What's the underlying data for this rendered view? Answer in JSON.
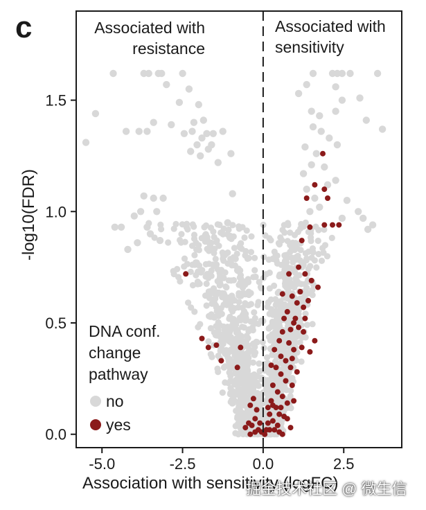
{
  "panel_label": "c",
  "watermark": "掘金技术社区 @ 微生信",
  "colors": {
    "no": "#d8d8d8",
    "yes": "#8b1a1a",
    "axis": "#1a1a1a"
  },
  "chart_data": {
    "type": "scatter",
    "title": "",
    "xlabel": "Association with sensitivity (logFC)",
    "ylabel": "-log10(FDR)",
    "xlim": [
      -5.8,
      4.3
    ],
    "ylim": [
      -0.06,
      1.9
    ],
    "xticks": [
      -5.0,
      -2.5,
      0.0,
      2.5
    ],
    "xtick_labels": [
      "-5.0",
      "-2.5",
      "0.0",
      "2.5"
    ],
    "yticks": [
      0.0,
      0.5,
      1.0,
      1.5
    ],
    "ytick_labels": [
      "0.0",
      "0.5",
      "1.0",
      "1.5"
    ],
    "vline": {
      "x": 0,
      "style": "dashed"
    },
    "annotations": {
      "left": [
        "Associated with",
        "resistance"
      ],
      "right": [
        "Associated with",
        "sensitivity"
      ]
    },
    "legend": {
      "title": [
        "DNA conf.",
        "change",
        "pathway"
      ],
      "placement": "bottom-left",
      "entries": [
        {
          "key": "no",
          "label": "no"
        },
        {
          "key": "yes",
          "label": "yes"
        }
      ]
    },
    "series": [
      {
        "name": "no",
        "points": [
          [
            -5.5,
            1.31
          ],
          [
            -5.2,
            1.44
          ],
          [
            -4.65,
            1.62
          ],
          [
            -4.25,
            1.36
          ],
          [
            -3.85,
            1.36
          ],
          [
            -3.7,
            1.62
          ],
          [
            -3.6,
            1.36
          ],
          [
            -3.55,
            1.62
          ],
          [
            -3.25,
            1.62
          ],
          [
            -3.15,
            1.62
          ],
          [
            -3.0,
            1.57
          ],
          [
            -2.85,
            1.39
          ],
          [
            -2.5,
            1.62
          ],
          [
            -2.6,
            1.49
          ],
          [
            -2.3,
            1.55
          ],
          [
            -2.2,
            1.36
          ],
          [
            -2.0,
            1.48
          ],
          [
            -1.75,
            1.35
          ],
          [
            -1.55,
            1.35
          ],
          [
            -1.4,
            1.22
          ],
          [
            -1.25,
            1.36
          ],
          [
            -1.0,
            1.26
          ],
          [
            -0.95,
            1.08
          ],
          [
            -1.1,
            0.95
          ],
          [
            -2.15,
            1.4
          ],
          [
            -2.05,
            1.3
          ],
          [
            -1.9,
            1.33
          ],
          [
            -2.45,
            1.35
          ],
          [
            -1.95,
            1.25
          ],
          [
            -1.7,
            1.28
          ],
          [
            -1.6,
            1.3
          ],
          [
            -2.25,
            1.27
          ],
          [
            -3.4,
            1.4
          ],
          [
            -1.85,
            1.41
          ],
          [
            -3.7,
            1.07
          ],
          [
            -3.4,
            1.06
          ],
          [
            -3.1,
            1.06
          ],
          [
            -3.3,
            1.0
          ],
          [
            -4.0,
            0.98
          ],
          [
            -3.8,
            1.0
          ],
          [
            -4.4,
            0.93
          ],
          [
            -4.6,
            0.93
          ],
          [
            -3.9,
            0.86
          ],
          [
            -3.6,
            0.93
          ],
          [
            -4.2,
            0.83
          ],
          [
            -3.5,
            0.9
          ],
          [
            -3.2,
            0.87
          ],
          [
            1.55,
            1.62
          ],
          [
            1.35,
            1.57
          ],
          [
            1.1,
            1.53
          ],
          [
            1.5,
            1.45
          ],
          [
            1.75,
            1.43
          ],
          [
            2.15,
            1.62
          ],
          [
            2.3,
            1.62
          ],
          [
            2.45,
            1.62
          ],
          [
            2.25,
            1.56
          ],
          [
            2.45,
            1.5
          ],
          [
            2.25,
            1.45
          ],
          [
            2.05,
            1.33
          ],
          [
            1.8,
            1.36
          ],
          [
            1.65,
            1.26
          ],
          [
            1.5,
            1.21
          ],
          [
            1.25,
            1.17
          ],
          [
            1.35,
            1.1
          ],
          [
            1.6,
            1.06
          ],
          [
            1.75,
            1.02
          ],
          [
            2.25,
            1.14
          ],
          [
            2.7,
            1.62
          ],
          [
            3.0,
            1.51
          ],
          [
            3.55,
            1.62
          ],
          [
            3.7,
            1.37
          ],
          [
            3.2,
            1.41
          ],
          [
            2.95,
            1.0
          ],
          [
            3.1,
            0.97
          ],
          [
            3.25,
            0.92
          ],
          [
            2.45,
            0.97
          ],
          [
            2.3,
            1.3
          ],
          [
            1.9,
            1.2
          ],
          [
            2.0,
            1.12
          ],
          [
            1.55,
            1.38
          ],
          [
            1.3,
            1.29
          ],
          [
            2.6,
            1.05
          ],
          [
            3.4,
            0.94
          ],
          [
            1.45,
            1.0
          ]
        ]
      },
      {
        "name": "yes",
        "points": [
          [
            -2.4,
            0.72
          ],
          [
            -1.9,
            0.43
          ],
          [
            -1.7,
            0.39
          ],
          [
            -1.45,
            0.4
          ],
          [
            -1.3,
            0.33
          ],
          [
            -0.7,
            0.39
          ],
          [
            -0.8,
            0.3
          ],
          [
            -0.4,
            0.13
          ],
          [
            -0.35,
            0.04
          ],
          [
            -0.25,
            0.07
          ],
          [
            -0.2,
            0.11
          ],
          [
            -0.15,
            0.02
          ],
          [
            -0.1,
            0.05
          ],
          [
            -0.05,
            0.01
          ],
          [
            0.1,
            0.02
          ],
          [
            0.15,
            0.05
          ],
          [
            1.85,
            1.26
          ],
          [
            1.6,
            1.12
          ],
          [
            1.9,
            1.1
          ],
          [
            2.0,
            1.06
          ],
          [
            2.15,
            0.94
          ],
          [
            2.35,
            0.94
          ],
          [
            1.9,
            0.94
          ],
          [
            1.45,
            0.93
          ],
          [
            1.35,
            1.06
          ],
          [
            1.2,
            0.87
          ],
          [
            1.1,
            0.75
          ],
          [
            1.3,
            0.72
          ],
          [
            1.5,
            0.69
          ],
          [
            1.7,
            0.66
          ],
          [
            0.8,
            0.72
          ],
          [
            0.9,
            0.62
          ],
          [
            1.05,
            0.59
          ],
          [
            1.25,
            0.57
          ],
          [
            1.4,
            0.6
          ],
          [
            0.75,
            0.55
          ],
          [
            0.95,
            0.5
          ],
          [
            1.1,
            0.48
          ],
          [
            1.25,
            0.46
          ],
          [
            0.6,
            0.46
          ],
          [
            0.8,
            0.41
          ],
          [
            0.95,
            0.38
          ],
          [
            1.2,
            0.39
          ],
          [
            1.45,
            0.37
          ],
          [
            0.55,
            0.35
          ],
          [
            0.7,
            0.33
          ],
          [
            0.85,
            0.3
          ],
          [
            1.05,
            0.28
          ],
          [
            0.4,
            0.3
          ],
          [
            0.55,
            0.27
          ],
          [
            0.7,
            0.24
          ],
          [
            0.9,
            0.22
          ],
          [
            0.3,
            0.22
          ],
          [
            0.45,
            0.19
          ],
          [
            0.6,
            0.17
          ],
          [
            0.75,
            0.14
          ],
          [
            0.25,
            0.15
          ],
          [
            0.4,
            0.12
          ],
          [
            0.5,
            0.09
          ],
          [
            0.65,
            0.08
          ],
          [
            0.2,
            0.09
          ],
          [
            0.3,
            0.06
          ],
          [
            0.45,
            0.04
          ],
          [
            0.35,
            0.02
          ],
          [
            0.2,
            0.02
          ],
          [
            0.05,
            0.0
          ],
          [
            0.5,
            0.01
          ],
          [
            0.6,
            0.0
          ],
          [
            0.85,
            0.03
          ],
          [
            1.0,
            0.52
          ],
          [
            1.15,
            0.64
          ],
          [
            0.65,
            0.52
          ],
          [
            0.5,
            0.42
          ],
          [
            0.35,
            0.38
          ],
          [
            0.25,
            0.31
          ],
          [
            0.85,
            0.47
          ],
          [
            0.95,
            0.15
          ],
          [
            -0.3,
            0.16
          ],
          [
            -0.45,
            0.05
          ],
          [
            -0.55,
            0.03
          ],
          [
            -0.4,
            0.0
          ],
          [
            -0.25,
            0.01
          ],
          [
            1.6,
            0.42
          ],
          [
            0.15,
            0.12
          ],
          [
            0.3,
            0.13
          ],
          [
            0.55,
            0.12
          ],
          [
            0.75,
            0.07
          ],
          [
            0.9,
            0.34
          ],
          [
            1.3,
            0.52
          ],
          [
            0.6,
            0.63
          ]
        ]
      }
    ]
  }
}
